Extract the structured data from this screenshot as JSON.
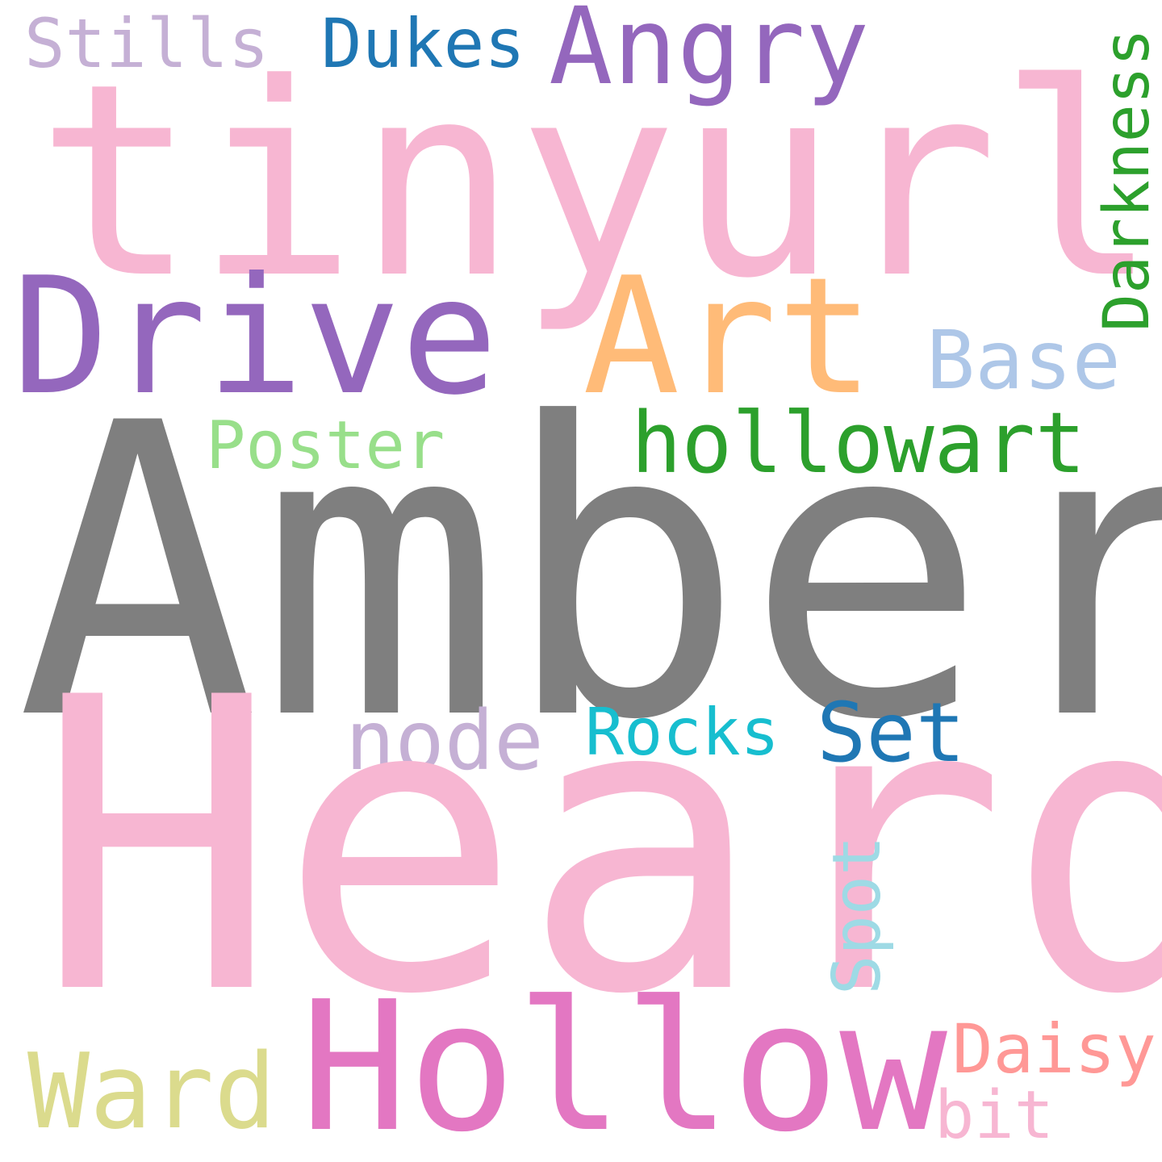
{
  "word_cloud": {
    "words": [
      {
        "id": "stills",
        "text": "Stills",
        "color": "#c5b0d5"
      },
      {
        "id": "dukes",
        "text": "Dukes",
        "color": "#1f77b4"
      },
      {
        "id": "angry",
        "text": "Angry",
        "color": "#9467bd"
      },
      {
        "id": "tinyurl",
        "text": "tinyurl",
        "color": "#f7b6d2"
      },
      {
        "id": "drive",
        "text": "Drive",
        "color": "#9467bd"
      },
      {
        "id": "art",
        "text": "Art",
        "color": "#ffbb78"
      },
      {
        "id": "darkness",
        "text": "Darkness",
        "color": "#2ca02c",
        "orientation": "vertical"
      },
      {
        "id": "base",
        "text": "Base",
        "color": "#aec7e8"
      },
      {
        "id": "poster",
        "text": "Poster",
        "color": "#98df8a"
      },
      {
        "id": "hollowart",
        "text": "hollowart",
        "color": "#2ca02c"
      },
      {
        "id": "amber",
        "text": "Amber",
        "color": "#7f7f7f"
      },
      {
        "id": "node",
        "text": "node",
        "color": "#c5b0d5"
      },
      {
        "id": "rocks",
        "text": "Rocks",
        "color": "#17becf"
      },
      {
        "id": "set",
        "text": "Set",
        "color": "#1f77b4"
      },
      {
        "id": "heard",
        "text": "Heard",
        "color": "#f7b6d2"
      },
      {
        "id": "spot",
        "text": "Spot",
        "color": "#9edae5",
        "orientation": "vertical"
      },
      {
        "id": "hollow",
        "text": "Hollow",
        "color": "#e377c2"
      },
      {
        "id": "daisy",
        "text": "Daisy",
        "color": "#ff9896"
      },
      {
        "id": "ward",
        "text": "Ward",
        "color": "#dbdb8d"
      },
      {
        "id": "bit",
        "text": "bit",
        "color": "#f7b6d2"
      }
    ]
  }
}
